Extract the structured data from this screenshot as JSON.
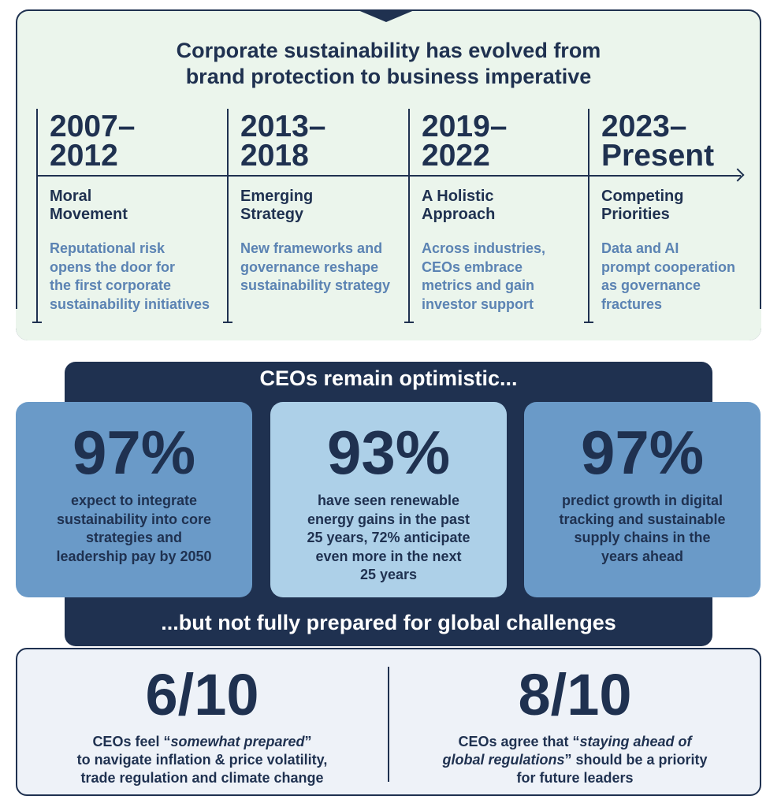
{
  "timeline": {
    "title_line1": "Corporate sustainability has evolved from",
    "title_line2": "brand protection to business imperative",
    "periods": [
      {
        "year1": "2007–",
        "year2": "2012",
        "phase1": "Moral",
        "phase2": "Movement",
        "desc": [
          "Reputational risk",
          "opens the door for",
          "the first corporate",
          "sustainability initiatives"
        ]
      },
      {
        "year1": "2013–",
        "year2": "2018",
        "phase1": "Emerging",
        "phase2": "Strategy",
        "desc": [
          "New frameworks and",
          "governance reshape",
          "sustainability strategy"
        ]
      },
      {
        "year1": "2019–",
        "year2": "2022",
        "phase1": "A Holistic",
        "phase2": "Approach",
        "desc": [
          "Across industries,",
          "CEOs embrace",
          "metrics and gain",
          "investor support"
        ]
      },
      {
        "year1": "2023–",
        "year2": "Present",
        "phase1": "Competing",
        "phase2": "Priorities",
        "desc": [
          "Data and AI",
          "prompt cooperation",
          "as governance",
          "fractures"
        ]
      }
    ]
  },
  "optimism": {
    "heading": "CEOs remain optimistic...",
    "cards": [
      {
        "value": "97%",
        "text": [
          "expect to integrate",
          "sustainability into core",
          "strategies and",
          "leadership pay by 2050"
        ],
        "color": "#6a9ac8"
      },
      {
        "value": "93%",
        "text": [
          "have seen renewable",
          "energy gains in the past",
          "25 years, 72% anticipate",
          "even more in the next",
          "25 years"
        ],
        "color": "#add0e8"
      },
      {
        "value": "97%",
        "text": [
          "predict growth in digital",
          "tracking and sustainable",
          "supply chains in the",
          "years ahead"
        ],
        "color": "#6a9ac8"
      }
    ],
    "footer": "...but not fully prepared for global challenges"
  },
  "preparedness": [
    {
      "value": "6/10",
      "pre": "CEOs feel “",
      "em": "somewhat prepared",
      "post": "”",
      "line2": "to navigate inflation & price volatility,",
      "line3": "trade regulation and climate change"
    },
    {
      "value": "8/10",
      "pre": "CEOs agree that “",
      "em": "staying ahead of",
      "line2_em": "global regulations",
      "line2_post": "” should be a priority",
      "line3": "for future leaders"
    }
  ],
  "colors": {
    "navy": "#1f3150",
    "panel_green": "#ebf5ec",
    "accent_text": "#5b83b3"
  }
}
